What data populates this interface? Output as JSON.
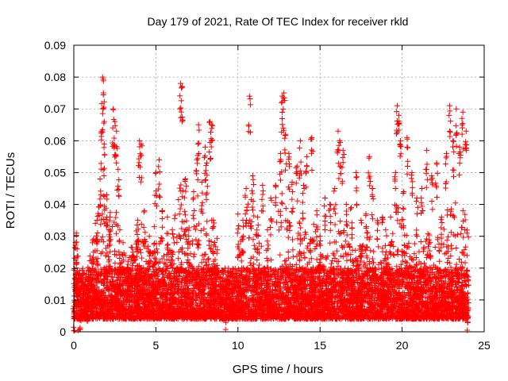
{
  "chart_data": {
    "type": "scatter",
    "title": "Day 179 of 2021, Rate Of TEC Index for receiver rkld",
    "xlabel": "GPS time / hours",
    "ylabel": "ROTI / TECUs",
    "xlim": [
      0,
      25
    ],
    "ylim": [
      0,
      0.09
    ],
    "grid": true,
    "marker": "+",
    "color": "#ff0000",
    "x_ticks": [
      0,
      5,
      10,
      15,
      20,
      25
    ],
    "x_tick_labels": [
      "0",
      "5",
      "10",
      "15",
      "20",
      "25"
    ],
    "y_ticks": [
      0,
      0.01,
      0.02,
      0.03,
      0.04,
      0.05,
      0.06,
      0.07,
      0.08,
      0.09
    ],
    "y_tick_labels": [
      "0",
      "0.01",
      "0.02",
      "0.03",
      "0.04",
      "0.05",
      "0.06",
      "0.07",
      "0.08",
      "0.09"
    ],
    "series": [
      {
        "name": "ROTI",
        "points": [
          [
            0.0,
            0.008
          ],
          [
            0.1,
            0.028
          ],
          [
            0.15,
            0.031
          ],
          [
            0.2,
            0.026
          ],
          [
            0.3,
            0.012
          ],
          [
            0.4,
            0.009
          ],
          [
            0.6,
            0.015
          ],
          [
            0.8,
            0.011
          ],
          [
            1.0,
            0.018
          ],
          [
            1.2,
            0.025
          ],
          [
            1.4,
            0.022
          ],
          [
            1.6,
            0.048
          ],
          [
            1.7,
            0.063
          ],
          [
            1.75,
            0.08
          ],
          [
            1.8,
            0.075
          ],
          [
            1.85,
            0.059
          ],
          [
            2.0,
            0.043
          ],
          [
            2.2,
            0.036
          ],
          [
            2.4,
            0.07
          ],
          [
            2.5,
            0.066
          ],
          [
            2.6,
            0.063
          ],
          [
            2.7,
            0.051
          ],
          [
            2.8,
            0.032
          ],
          [
            3.0,
            0.028
          ],
          [
            3.3,
            0.022
          ],
          [
            3.6,
            0.025
          ],
          [
            3.9,
            0.035
          ],
          [
            4.0,
            0.06
          ],
          [
            4.1,
            0.059
          ],
          [
            4.3,
            0.038
          ],
          [
            4.6,
            0.03
          ],
          [
            4.9,
            0.033
          ],
          [
            5.0,
            0.05
          ],
          [
            5.2,
            0.054
          ],
          [
            5.4,
            0.038
          ],
          [
            5.7,
            0.036
          ],
          [
            6.0,
            0.032
          ],
          [
            6.3,
            0.02
          ],
          [
            6.5,
            0.078
          ],
          [
            6.6,
            0.077
          ],
          [
            6.8,
            0.048
          ],
          [
            7.0,
            0.03
          ],
          [
            7.3,
            0.044
          ],
          [
            7.5,
            0.054
          ],
          [
            7.6,
            0.065
          ],
          [
            7.8,
            0.047
          ],
          [
            8.0,
            0.058
          ],
          [
            8.1,
            0.053
          ],
          [
            8.3,
            0.066
          ],
          [
            8.4,
            0.065
          ],
          [
            8.5,
            0.035
          ],
          [
            8.7,
            0.02
          ],
          [
            9.0,
            0.012
          ],
          [
            9.3,
            0.012
          ],
          [
            9.6,
            0.015
          ],
          [
            10.0,
            0.037
          ],
          [
            10.3,
            0.035
          ],
          [
            10.5,
            0.045
          ],
          [
            10.7,
            0.074
          ],
          [
            10.9,
            0.049
          ],
          [
            11.2,
            0.036
          ],
          [
            11.5,
            0.046
          ],
          [
            11.8,
            0.032
          ],
          [
            12.0,
            0.042
          ],
          [
            12.3,
            0.046
          ],
          [
            12.6,
            0.056
          ],
          [
            12.7,
            0.074
          ],
          [
            12.8,
            0.075
          ],
          [
            12.9,
            0.062
          ],
          [
            13.1,
            0.056
          ],
          [
            13.3,
            0.047
          ],
          [
            13.6,
            0.052
          ],
          [
            13.8,
            0.06
          ],
          [
            14.0,
            0.046
          ],
          [
            14.2,
            0.055
          ],
          [
            14.5,
            0.061
          ],
          [
            14.8,
            0.038
          ],
          [
            15.0,
            0.03
          ],
          [
            15.3,
            0.042
          ],
          [
            15.6,
            0.04
          ],
          [
            15.9,
            0.045
          ],
          [
            16.1,
            0.063
          ],
          [
            16.2,
            0.06
          ],
          [
            16.4,
            0.057
          ],
          [
            16.6,
            0.04
          ],
          [
            16.9,
            0.039
          ],
          [
            17.2,
            0.05
          ],
          [
            17.5,
            0.035
          ],
          [
            17.8,
            0.037
          ],
          [
            18.0,
            0.055
          ],
          [
            18.2,
            0.045
          ],
          [
            18.5,
            0.035
          ],
          [
            18.8,
            0.036
          ],
          [
            19.0,
            0.032
          ],
          [
            19.3,
            0.036
          ],
          [
            19.6,
            0.05
          ],
          [
            19.7,
            0.071
          ],
          [
            19.8,
            0.068
          ],
          [
            19.9,
            0.06
          ],
          [
            20.1,
            0.044
          ],
          [
            20.3,
            0.061
          ],
          [
            20.6,
            0.05
          ],
          [
            20.9,
            0.042
          ],
          [
            21.2,
            0.045
          ],
          [
            21.5,
            0.057
          ],
          [
            21.8,
            0.049
          ],
          [
            22.1,
            0.053
          ],
          [
            22.4,
            0.036
          ],
          [
            22.7,
            0.056
          ],
          [
            22.9,
            0.071
          ],
          [
            23.1,
            0.06
          ],
          [
            23.3,
            0.07
          ],
          [
            23.5,
            0.058
          ],
          [
            23.7,
            0.069
          ],
          [
            23.9,
            0.063
          ],
          [
            24.0,
            0.012
          ]
        ]
      }
    ],
    "dense_band": {
      "note": "dense cloud of points between roughly 0.004 and 0.02 TECUs across the whole day, with broad enhancements to about 0.03-0.045 near hours 1.5-3, 4-5.5, 7-8.5, 10-14 and 18-24",
      "base_min": 0.004,
      "base_max": 0.02,
      "samples_per_hour": 320
    }
  }
}
